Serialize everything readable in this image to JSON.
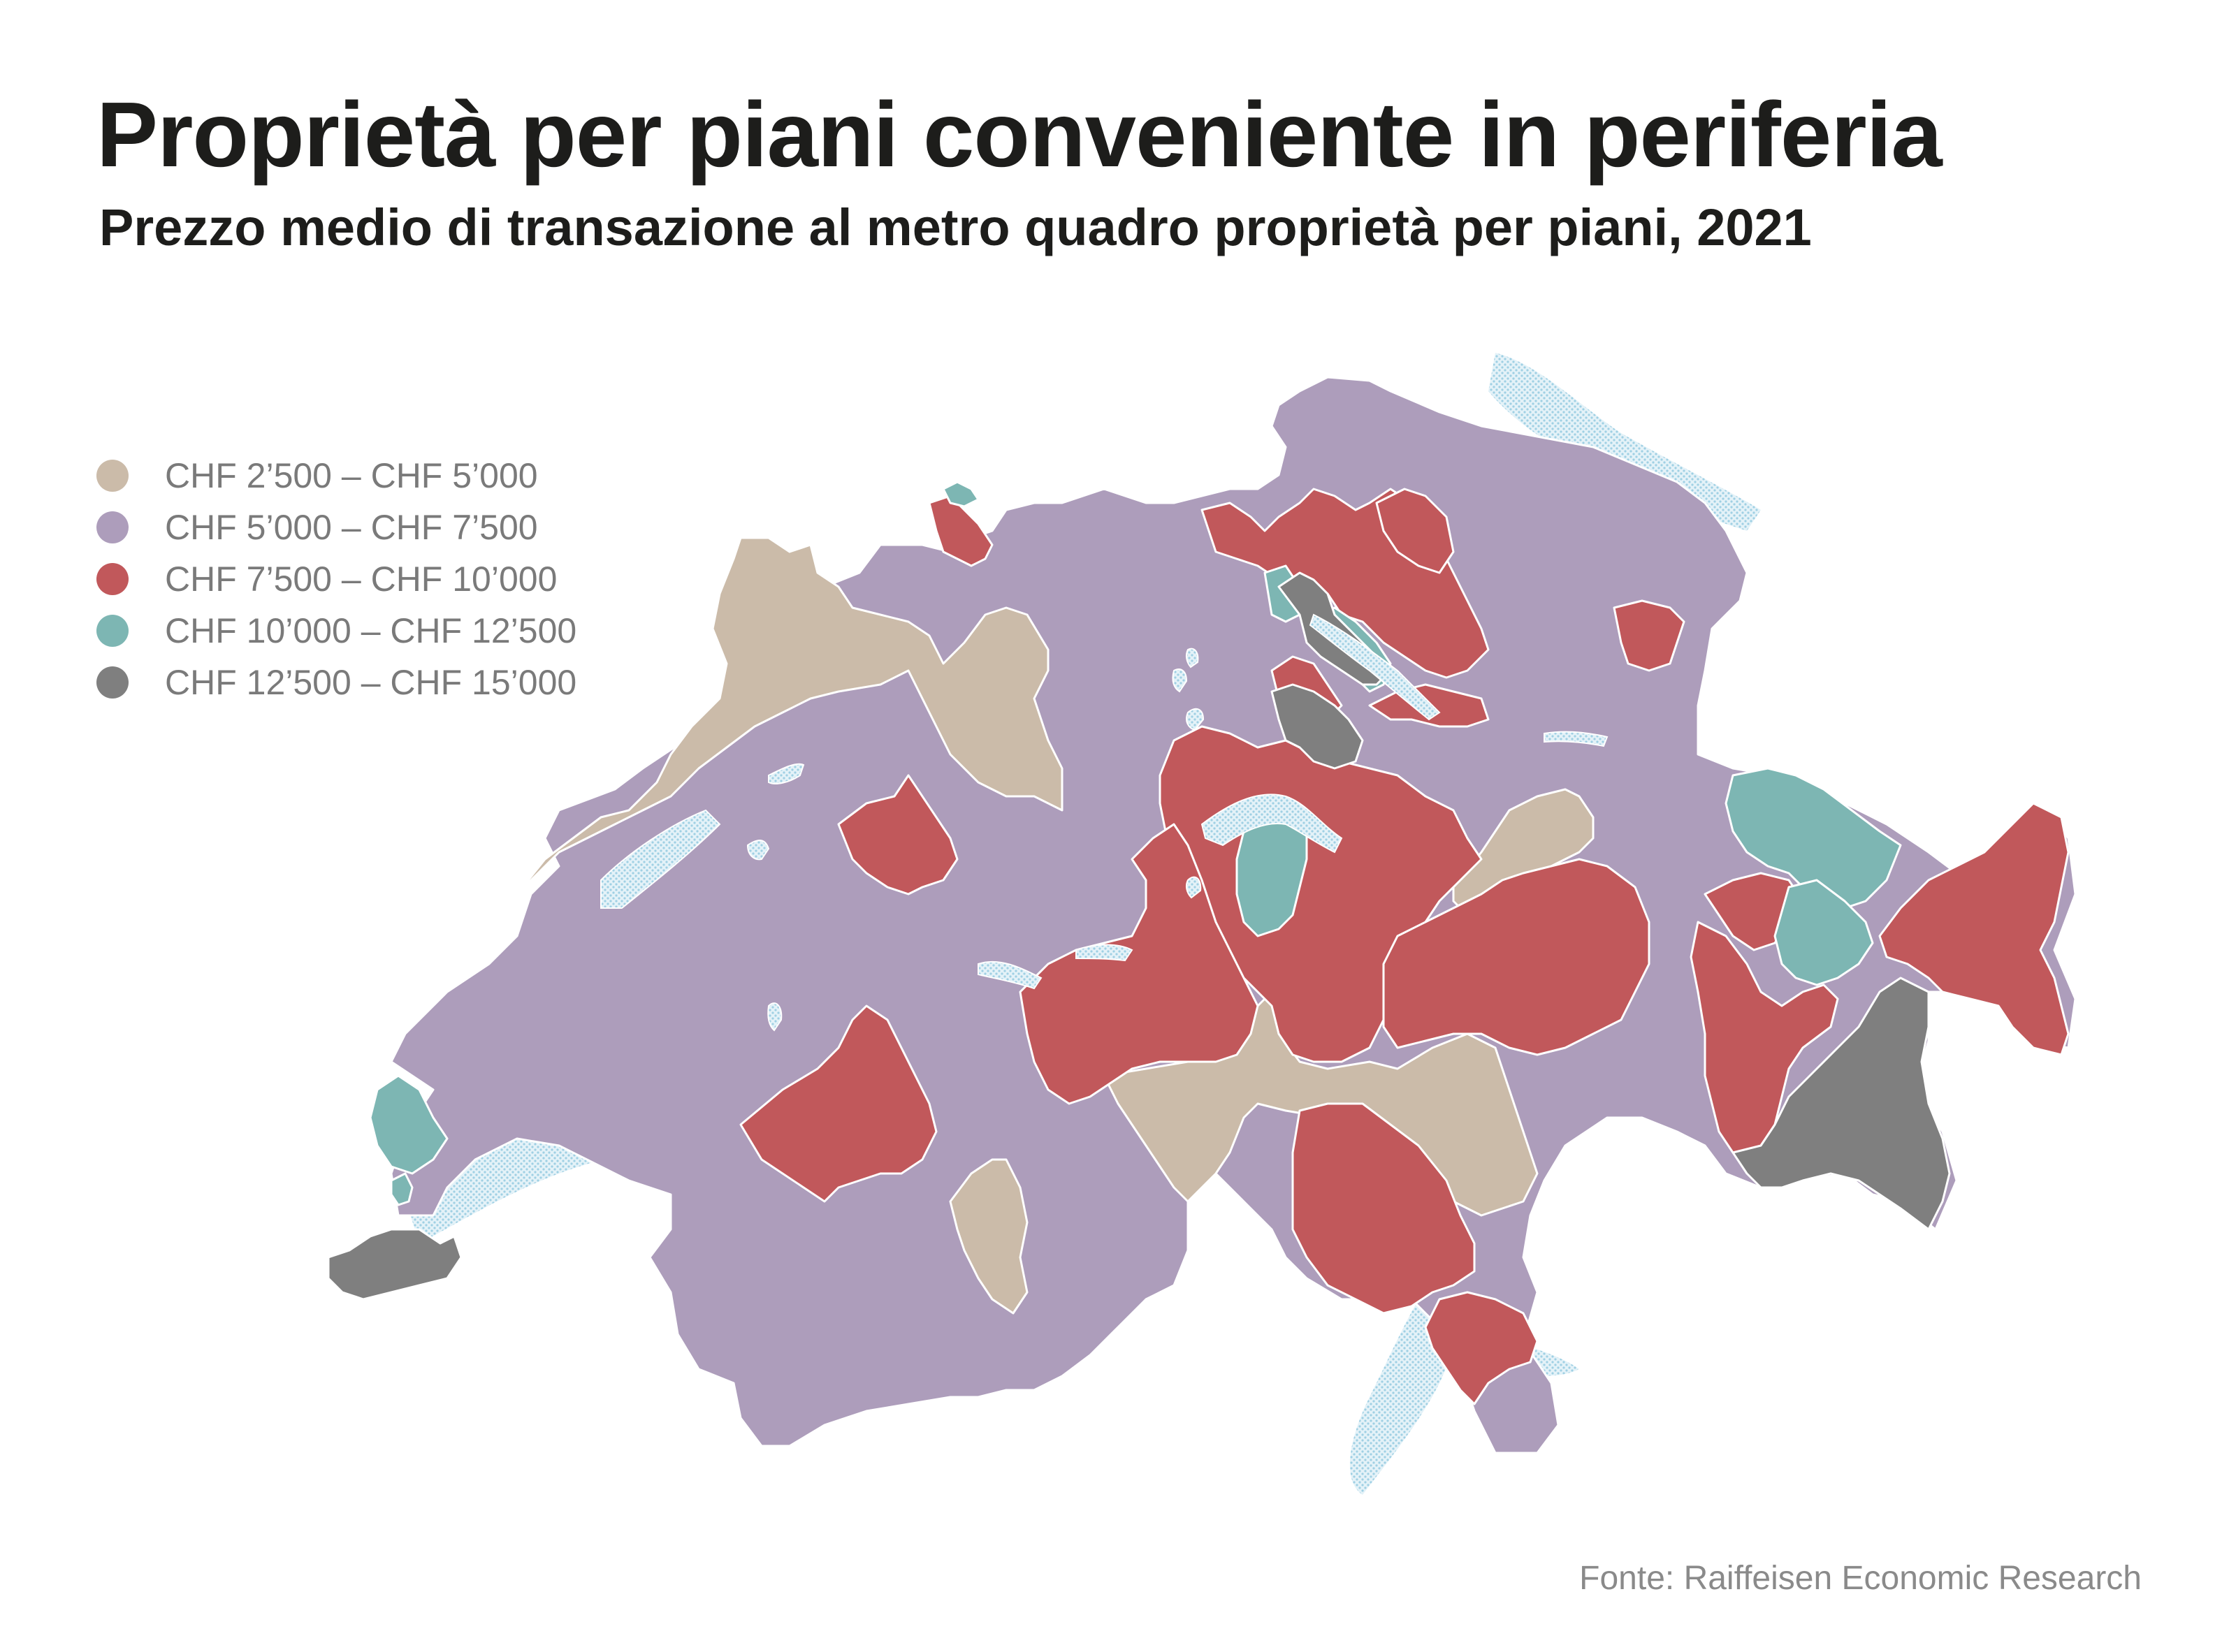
{
  "title": "Proprietà per piani conveniente in periferia",
  "subtitle": "Prezzo medio di transazione al metro quadro proprietà per piani, 2021",
  "legend": [
    {
      "label": "CHF 2’500 – CHF 5’000",
      "color": "#cbbba9"
    },
    {
      "label": "CHF 5’000 – CHF 7’500",
      "color": "#ad9dbb"
    },
    {
      "label": "CHF 7’500 – CHF 10’000",
      "color": "#c1585b"
    },
    {
      "label": "CHF 10’000 – CHF 12’500",
      "color": "#7db6b3"
    },
    {
      "label": "CHF 12’500 – CHF 15’000",
      "color": "#7f7f7f"
    }
  ],
  "map": {
    "lake_color": "#cfe8f3",
    "border_color": "#ffffff"
  },
  "source": "Fonte: Raiffeisen Economic Research"
}
